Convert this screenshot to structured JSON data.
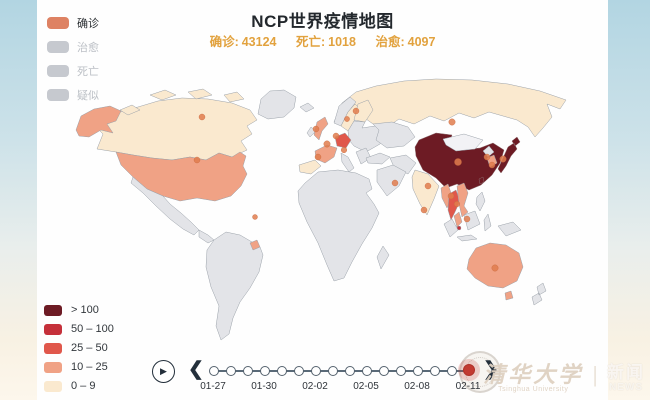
{
  "header": {
    "title": "NCP世界疫情地图"
  },
  "stats": {
    "items": [
      {
        "label": "确诊:",
        "value": "43124"
      },
      {
        "label": "死亡:",
        "value": "1018"
      },
      {
        "label": "治愈:",
        "value": "4097"
      }
    ],
    "text_color": "#e2a23e"
  },
  "metric_legend": {
    "items": [
      {
        "label": "确诊",
        "active": true,
        "color": "#de8263"
      },
      {
        "label": "治愈",
        "active": false,
        "color": "#c6c9cf"
      },
      {
        "label": "死亡",
        "active": false,
        "color": "#c6c9cf"
      },
      {
        "label": "疑似",
        "active": false,
        "color": "#c6c9cf"
      }
    ]
  },
  "scale_legend": {
    "items": [
      {
        "label": "> 100",
        "color": "#6d1b24"
      },
      {
        "label": "50 – 100",
        "color": "#c5303a"
      },
      {
        "label": "25 – 50",
        "color": "#e0574b"
      },
      {
        "label": "10 – 25",
        "color": "#f0a285"
      },
      {
        "label": "0 – 9",
        "color": "#fae9cf"
      }
    ]
  },
  "timeline": {
    "play_icon": "▶",
    "prev_icon": "❮",
    "next_icon": "❯",
    "dot_count": 16,
    "selected_index": 15,
    "selected_color": "#c23a31",
    "labels": [
      "01-27",
      "01-30",
      "02-02",
      "02-05",
      "02-08",
      "02-11"
    ]
  },
  "watermark": {
    "university_cn": "清华大学",
    "university_en": "Tsinghua University",
    "divider": "|",
    "news_cn": "新闻",
    "news_en": "NEWS"
  },
  "chart_data": {
    "type": "heatmap",
    "subtype": "world-choropleth-map",
    "title": "NCP世界疫情地图",
    "metric_selected": "确诊",
    "totals": {
      "确诊": 43124,
      "死亡": 1018,
      "治愈": 4097
    },
    "date_selected": "02-11",
    "timeline_tick_labels": [
      "01-27",
      "01-30",
      "02-02",
      "02-05",
      "02-08",
      "02-11"
    ],
    "timeline_steps": 16,
    "legend_position": "bottom-left",
    "bins": [
      {
        "label": "> 100",
        "color": "#6d1b24"
      },
      {
        "label": "50 – 100",
        "color": "#c5303a"
      },
      {
        "label": "25 – 50",
        "color": "#e0574b"
      },
      {
        "label": "10 – 25",
        "color": "#f0a285"
      },
      {
        "label": "0 – 9",
        "color": "#fae9cf"
      }
    ],
    "regions": [
      {
        "name": "China",
        "bin": "> 100"
      },
      {
        "name": "Japan",
        "bin": "> 100"
      },
      {
        "name": "Taiwan",
        "bin": "> 100"
      },
      {
        "name": "Thailand",
        "bin": "25 – 50"
      },
      {
        "name": "Germany",
        "bin": "25 – 50"
      },
      {
        "name": "Singapore",
        "bin": "50 – 100"
      },
      {
        "name": "United States",
        "bin": "10 – 25"
      },
      {
        "name": "Australia",
        "bin": "10 – 25"
      },
      {
        "name": "United Kingdom",
        "bin": "10 – 25"
      },
      {
        "name": "France",
        "bin": "10 – 25"
      },
      {
        "name": "South Korea",
        "bin": "10 – 25"
      },
      {
        "name": "Vietnam",
        "bin": "10 – 25"
      },
      {
        "name": "Malaysia",
        "bin": "10 – 25"
      },
      {
        "name": "Myanmar",
        "bin": "10 – 25"
      },
      {
        "name": "Canada",
        "bin": "0 – 9"
      },
      {
        "name": "Russia",
        "bin": "0 – 9"
      },
      {
        "name": "India",
        "bin": "0 – 9"
      },
      {
        "name": "Spain",
        "bin": "0 – 9"
      },
      {
        "name": "Finland",
        "bin": "0 – 9"
      },
      {
        "name": "Sweden",
        "bin": "0 – 9"
      }
    ],
    "no_data_color": "#e3e4e8",
    "city_marker_color": "#e07c4e"
  }
}
